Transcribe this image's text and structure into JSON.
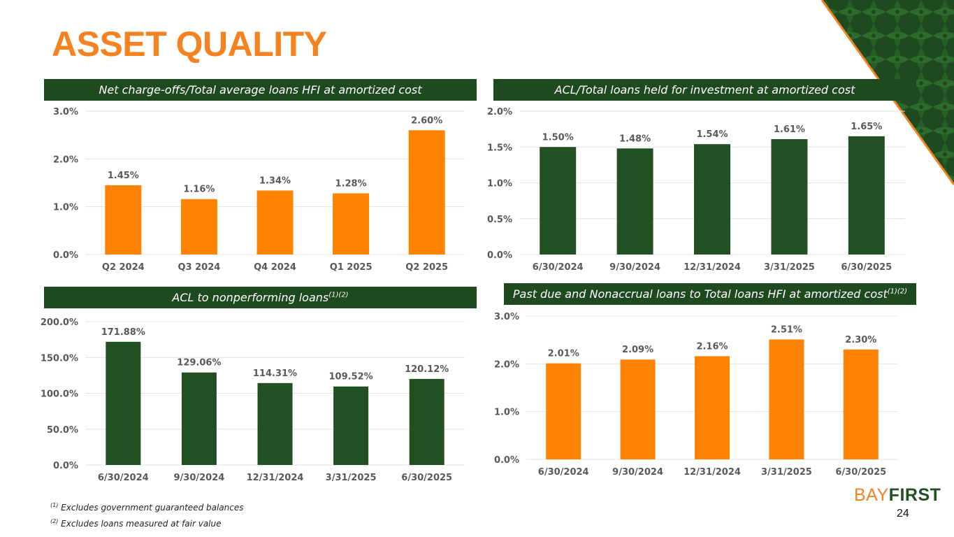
{
  "slide": {
    "title": "ASSET QUALITY",
    "page_number": "24",
    "brand": {
      "part1": "BAY",
      "part2": "FIRST"
    },
    "footnotes": [
      {
        "marker": "(1)",
        "text": " Excludes government guaranteed balances"
      },
      {
        "marker": "(2)",
        "text": " Excludes loans measured at fair value"
      }
    ]
  },
  "colors": {
    "orange": "#FF8300",
    "green": "#215023",
    "header_bg": "#1F4A1F",
    "title": "#F58220",
    "grid": "#E3E3E3",
    "axis_text": "#595959"
  },
  "headers": {
    "nco": {
      "text": "Net charge-offs/Total average loans HFI at amortized cost",
      "sup": ""
    },
    "acl_loans": {
      "text": "ACL/Total loans held for investment at amortized cost",
      "sup": ""
    },
    "acl_npl": {
      "text": "ACL to nonperforming loans",
      "sup": "(1)(2)"
    },
    "past_due": {
      "text": "Past due and Nonaccrual loans to Total loans HFI at amortized cost",
      "sup": "(1)(2)"
    }
  },
  "chart_data": [
    {
      "id": "nco",
      "type": "bar",
      "title": "Net charge-offs/Total average loans HFI at amortized cost",
      "categories": [
        "Q2 2024",
        "Q3 2024",
        "Q4 2024",
        "Q1 2025",
        "Q2 2025"
      ],
      "values": [
        1.45,
        1.16,
        1.34,
        1.28,
        2.6
      ],
      "labels": [
        "1.45%",
        "1.16%",
        "1.34%",
        "1.28%",
        "2.60%"
      ],
      "yticks": [
        0,
        1,
        2,
        3
      ],
      "ytick_labels": [
        "0.0%",
        "1.0%",
        "2.0%",
        "3.0%"
      ],
      "ylim": [
        0,
        3
      ],
      "color": "#FF8300"
    },
    {
      "id": "acl_loans",
      "type": "bar",
      "title": "ACL/Total loans held for investment at amortized cost",
      "categories": [
        "6/30/2024",
        "9/30/2024",
        "12/31/2024",
        "3/31/2025",
        "6/30/2025"
      ],
      "values": [
        1.5,
        1.48,
        1.54,
        1.61,
        1.65
      ],
      "labels": [
        "1.50%",
        "1.48%",
        "1.54%",
        "1.61%",
        "1.65%"
      ],
      "yticks": [
        0,
        0.5,
        1,
        1.5,
        2
      ],
      "ytick_labels": [
        "0.0%",
        "0.5%",
        "1.0%",
        "1.5%",
        "2.0%"
      ],
      "ylim": [
        0,
        2
      ],
      "color": "#215023"
    },
    {
      "id": "acl_npl",
      "type": "bar",
      "title": "ACL to nonperforming loans",
      "categories": [
        "6/30/2024",
        "9/30/2024",
        "12/31/2024",
        "3/31/2025",
        "6/30/2025"
      ],
      "values": [
        171.88,
        129.06,
        114.31,
        109.52,
        120.12
      ],
      "labels": [
        "171.88%",
        "129.06%",
        "114.31%",
        "109.52%",
        "120.12%"
      ],
      "yticks": [
        0,
        50,
        100,
        150,
        200
      ],
      "ytick_labels": [
        "0.0%",
        "50.0%",
        "100.0%",
        "150.0%",
        "200.0%"
      ],
      "ylim": [
        0,
        200
      ],
      "color": "#215023"
    },
    {
      "id": "past_due",
      "type": "bar",
      "title": "Past due and Nonaccrual loans to Total loans HFI at amortized cost",
      "categories": [
        "6/30/2024",
        "9/30/2024",
        "12/31/2024",
        "3/31/2025",
        "6/30/2025"
      ],
      "values": [
        2.01,
        2.09,
        2.16,
        2.51,
        2.3
      ],
      "labels": [
        "2.01%",
        "2.09%",
        "2.16%",
        "2.51%",
        "2.30%"
      ],
      "yticks": [
        0,
        1,
        2,
        3
      ],
      "ytick_labels": [
        "0.0%",
        "1.0%",
        "2.0%",
        "3.0%"
      ],
      "ylim": [
        0,
        3
      ],
      "color": "#FF8300"
    }
  ]
}
